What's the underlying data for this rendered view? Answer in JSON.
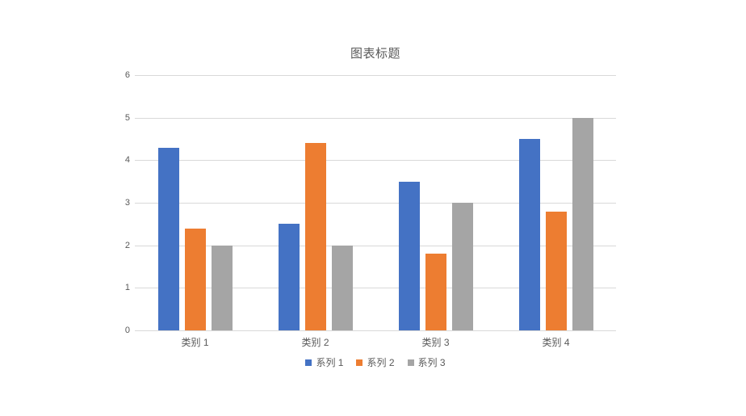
{
  "chart_data": {
    "type": "bar",
    "title": "图表标题",
    "categories": [
      "类别 1",
      "类别 2",
      "类别 3",
      "类别 4"
    ],
    "series": [
      {
        "name": "系列 1",
        "color": "#4472C4",
        "values": [
          4.3,
          2.5,
          3.5,
          4.5
        ]
      },
      {
        "name": "系列 2",
        "color": "#ED7D31",
        "values": [
          2.4,
          4.4,
          1.8,
          2.8
        ]
      },
      {
        "name": "系列 3",
        "color": "#A5A5A5",
        "values": [
          2.0,
          2.0,
          3.0,
          5.0
        ]
      }
    ],
    "xlabel": "",
    "ylabel": "",
    "ylim": [
      0,
      6
    ],
    "yticks": [
      0,
      1,
      2,
      3,
      4,
      5,
      6
    ],
    "grid": true,
    "legend_position": "bottom",
    "background_color": "#FFFFFF",
    "text_color": "#595959",
    "gridline_color": "#D9D9D9"
  }
}
